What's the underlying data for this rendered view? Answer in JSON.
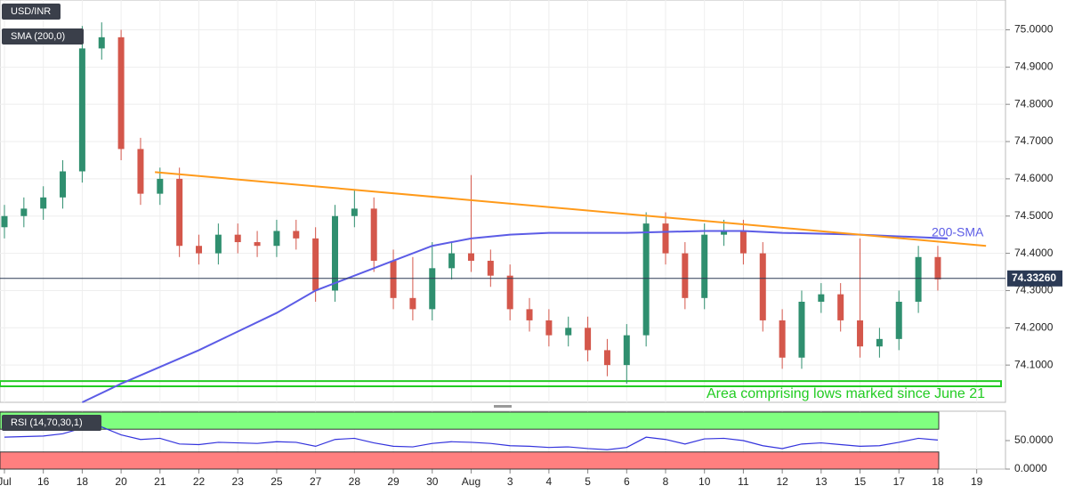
{
  "chart_data": [
    {
      "type": "candlestick",
      "title": "USD/INR",
      "indicator_label": "SMA (200,0)",
      "x": [
        0,
        0.5,
        1,
        1.5,
        2,
        2.5,
        3,
        3.5,
        4,
        4.5,
        5,
        5.5,
        6,
        6.5,
        7,
        7.5,
        8,
        8.5,
        9,
        9.5,
        10,
        10.5,
        11,
        11.5,
        12,
        12.5,
        13,
        13.5,
        14,
        14.5,
        15,
        15.5,
        16,
        16.5,
        17,
        17.5,
        18,
        18.5,
        19,
        19.5,
        20,
        20.5,
        21,
        21.5,
        22,
        22.5,
        23,
        23.5,
        24
      ],
      "open": [
        74.47,
        74.5,
        74.52,
        74.55,
        74.62,
        74.95,
        74.98,
        74.68,
        74.56,
        74.6,
        74.42,
        74.4,
        74.45,
        74.43,
        74.42,
        74.46,
        74.44,
        74.3,
        74.5,
        74.52,
        74.38,
        74.28,
        74.25,
        74.36,
        74.4,
        74.38,
        74.34,
        74.25,
        74.22,
        74.18,
        74.2,
        74.14,
        74.1,
        74.18,
        74.48,
        74.4,
        74.28,
        74.45,
        74.46,
        74.4,
        74.22,
        74.12,
        74.27,
        74.29,
        74.22,
        74.15,
        74.17,
        74.27,
        74.39
      ],
      "close": [
        74.5,
        74.52,
        74.55,
        74.62,
        74.95,
        74.98,
        74.68,
        74.56,
        74.6,
        74.42,
        74.4,
        74.45,
        74.43,
        74.42,
        74.46,
        74.44,
        74.3,
        74.5,
        74.52,
        74.38,
        74.28,
        74.25,
        74.36,
        74.4,
        74.38,
        74.34,
        74.25,
        74.22,
        74.18,
        74.2,
        74.14,
        74.1,
        74.18,
        74.48,
        74.4,
        74.28,
        74.45,
        74.46,
        74.4,
        74.22,
        74.12,
        74.27,
        74.29,
        74.22,
        74.15,
        74.17,
        74.27,
        74.39,
        74.33
      ],
      "high": [
        74.53,
        74.55,
        74.58,
        74.65,
        75.01,
        75.02,
        75.0,
        74.71,
        74.63,
        74.63,
        74.45,
        74.48,
        74.48,
        74.46,
        74.49,
        74.49,
        74.47,
        74.53,
        74.57,
        74.55,
        74.41,
        74.39,
        74.43,
        74.43,
        74.61,
        74.41,
        74.37,
        74.28,
        74.25,
        74.23,
        74.23,
        74.17,
        74.21,
        74.51,
        74.51,
        74.43,
        74.48,
        74.49,
        74.49,
        74.43,
        74.25,
        74.3,
        74.32,
        74.32,
        74.44,
        74.2,
        74.3,
        74.42,
        74.42
      ],
      "low": [
        74.44,
        74.47,
        74.49,
        74.52,
        74.59,
        74.92,
        74.65,
        74.53,
        74.53,
        74.39,
        74.37,
        74.37,
        74.4,
        74.39,
        74.39,
        74.41,
        74.27,
        74.27,
        74.47,
        74.35,
        74.25,
        74.22,
        74.22,
        74.33,
        74.35,
        74.31,
        74.22,
        74.19,
        74.15,
        74.15,
        74.11,
        74.07,
        74.05,
        74.15,
        74.37,
        74.25,
        74.25,
        74.42,
        74.37,
        74.19,
        74.09,
        74.09,
        74.24,
        74.19,
        74.12,
        74.12,
        74.14,
        74.24,
        74.3
      ],
      "up_color": "#2f8f6f",
      "down_color": "#d4574b",
      "sma": {
        "name": "200-SMA",
        "color": "#5c5ce6",
        "x": [
          2,
          3,
          5,
          7,
          8,
          9,
          10,
          11,
          12,
          13,
          14,
          16,
          18,
          19,
          20,
          22,
          24.25
        ],
        "values": [
          74.0,
          74.05,
          74.14,
          74.24,
          74.3,
          74.34,
          74.38,
          74.42,
          74.44,
          74.45,
          74.455,
          74.455,
          74.46,
          74.46,
          74.455,
          74.45,
          74.44
        ]
      },
      "trendline": {
        "color": "#ff9a1a",
        "x": [
          3.87,
          25.24
        ],
        "values": [
          74.618,
          74.42
        ]
      },
      "zone": {
        "label": "Area comprising lows marked since June 21",
        "color": "#22cc22",
        "from": 74.043,
        "to": 74.057
      },
      "last_price": {
        "value": 74.3326,
        "label": "74.33260"
      },
      "xlim": [
        -0.114,
        25.74
      ],
      "xticks": [
        {
          "value": 0,
          "label": "Jul"
        },
        {
          "value": 1,
          "label": "16"
        },
        {
          "value": 2,
          "label": "18"
        },
        {
          "value": 3,
          "label": "20"
        },
        {
          "value": 4,
          "label": "21"
        },
        {
          "value": 5,
          "label": "22"
        },
        {
          "value": 6,
          "label": "23"
        },
        {
          "value": 7,
          "label": "25"
        },
        {
          "value": 8,
          "label": "27"
        },
        {
          "value": 9,
          "label": "28"
        },
        {
          "value": 10,
          "label": "29"
        },
        {
          "value": 11,
          "label": "30"
        },
        {
          "value": 12,
          "label": "Aug"
        },
        {
          "value": 13,
          "label": "3"
        },
        {
          "value": 14,
          "label": "4"
        },
        {
          "value": 15,
          "label": "5"
        },
        {
          "value": 16,
          "label": "6"
        },
        {
          "value": 17,
          "label": "8"
        },
        {
          "value": 18,
          "label": "10"
        },
        {
          "value": 19,
          "label": "11"
        },
        {
          "value": 20,
          "label": "12"
        },
        {
          "value": 21,
          "label": "13"
        },
        {
          "value": 22,
          "label": "15"
        },
        {
          "value": 23,
          "label": "17"
        },
        {
          "value": 24,
          "label": "18"
        },
        {
          "value": 25,
          "label": "19"
        }
      ],
      "ylim": [
        74.0,
        75.08
      ],
      "yticks": [
        {
          "value": 74.1,
          "label": "74.1000"
        },
        {
          "value": 74.2,
          "label": "74.2000"
        },
        {
          "value": 74.3,
          "label": "74.3000"
        },
        {
          "value": 74.4,
          "label": "74.4000"
        },
        {
          "value": 74.5,
          "label": "74.5000"
        },
        {
          "value": 74.6,
          "label": "74.6000"
        },
        {
          "value": 74.7,
          "label": "74.7000"
        },
        {
          "value": 74.8,
          "label": "74.8000"
        },
        {
          "value": 74.9,
          "label": "74.9000"
        },
        {
          "value": 75.0,
          "label": "75.0000"
        }
      ]
    },
    {
      "type": "line",
      "title": "RSI (14,70,30,1)",
      "color": "#3333dd",
      "x": [
        0,
        0.5,
        1,
        1.5,
        2,
        2.5,
        3,
        3.5,
        4,
        4.5,
        5,
        5.5,
        6,
        6.5,
        7,
        7.5,
        8,
        8.5,
        9,
        9.5,
        10,
        10.5,
        11,
        11.5,
        12,
        12.5,
        13,
        13.5,
        14,
        14.5,
        15,
        15.5,
        16,
        16.5,
        17,
        17.5,
        18,
        18.5,
        19,
        19.5,
        20,
        20.5,
        21,
        21.5,
        22,
        22.5,
        23,
        23.5,
        24
      ],
      "values": [
        56,
        57,
        58,
        62,
        72,
        74,
        60,
        52,
        54,
        44,
        43,
        47,
        46,
        45,
        48,
        47,
        40,
        52,
        54,
        46,
        40,
        39,
        45,
        48,
        47,
        45,
        41,
        40,
        38,
        39,
        36,
        34,
        38,
        56,
        52,
        44,
        53,
        54,
        50,
        41,
        36,
        44,
        46,
        43,
        40,
        41,
        47,
        54,
        51
      ],
      "overbought": {
        "from": 70,
        "to": 100,
        "color": "#80ff80"
      },
      "oversold": {
        "from": 0,
        "to": 30,
        "color": "#ff7f7f"
      },
      "ylim": [
        0,
        100
      ],
      "yticks": [
        {
          "value": 0,
          "label": "0.0000"
        },
        {
          "value": 50,
          "label": "50.0000"
        }
      ]
    }
  ]
}
